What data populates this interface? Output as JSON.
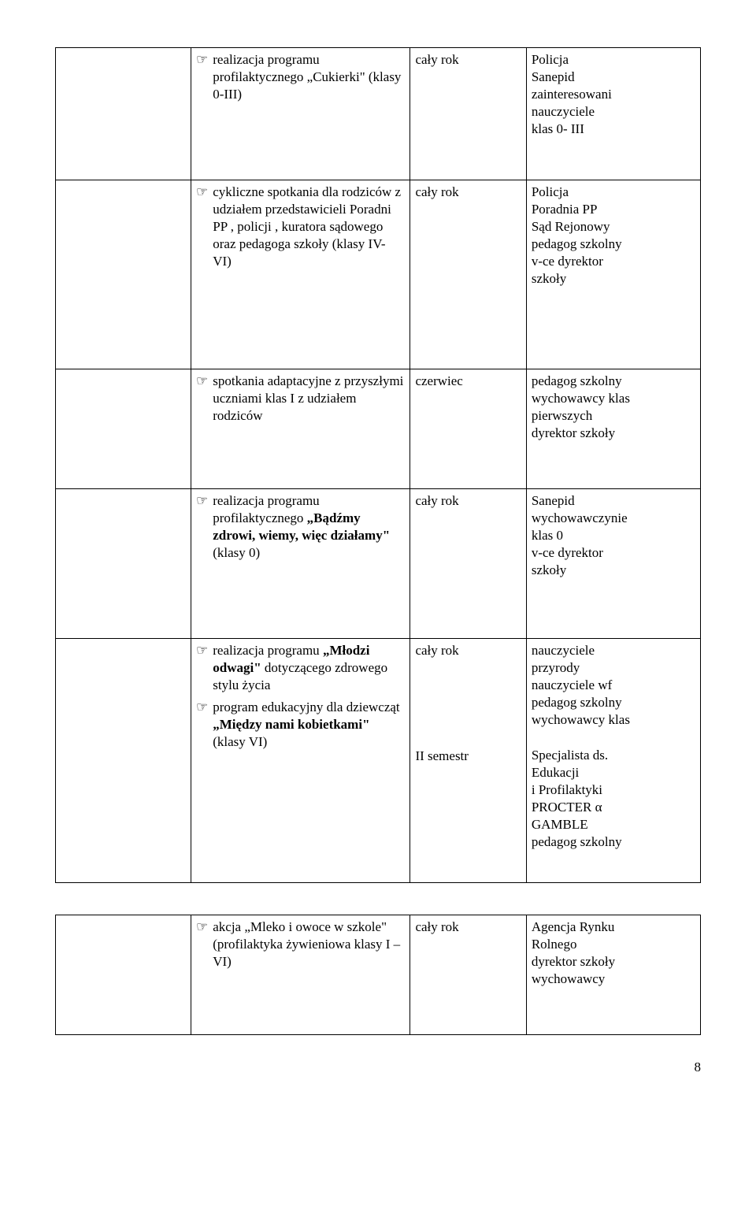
{
  "bullet_glyph": "☞",
  "rows": [
    {
      "col2_items": [
        {
          "text": "realizacja programu profilaktycznego „Cukierki\" (klasy 0-III)"
        }
      ],
      "col3": "cały rok",
      "col4": "Policja\nSanepid\nzainteresowani\nnauczyciele\nklas 0- III"
    },
    {
      "col2_items": [
        {
          "text": "cykliczne spotkania dla rodziców z udziałem przedstawicieli Poradni PP , policji , kuratora sądowego  oraz pedagoga szkoły (klasy IV- VI)"
        }
      ],
      "col3": "cały rok",
      "col4": "Policja\nPoradnia PP\nSąd Rejonowy\npedagog szkolny\nv-ce dyrektor\nszkoły"
    },
    {
      "col2_items": [
        {
          "text": "spotkania adaptacyjne z przyszłymi uczniami klas I z udziałem rodziców"
        }
      ],
      "col3": "czerwiec",
      "col4": "pedagog szkolny\nwychowawcy klas\npierwszych\ndyrektor szkoły"
    },
    {
      "col2_items": [
        {
          "html": "realizacja programu profilaktycznego <b>„Bądźmy zdrowi, wiemy, więc działamy\"</b> (klasy 0)"
        }
      ],
      "col3": "cały rok",
      "col4": "Sanepid\nwychowawczynie\nklas 0\nv-ce dyrektor\nszkoły"
    },
    {
      "col2_items": [
        {
          "html": "realizacja programu <b>„Młodzi odwagi\"</b> dotyczącego zdrowego stylu życia"
        },
        {
          "html": "program edukacyjny dla dziewcząt <b>„Między nami kobietkami\"</b> (klasy VI)"
        }
      ],
      "col3_multi": [
        "cały rok",
        "II semestr"
      ],
      "col4": "nauczyciele\nprzyrody\nnauczyciele wf\npedagog szkolny\nwychowawcy klas\n\nSpecjalista ds.\nEdukacji\ni Profilaktyki\nPROCTER α\nGAMBLE\npedagog szkolny"
    },
    {
      "col2_items": [
        {
          "text": "akcja „Mleko i owoce w szkole\" (profilaktyka żywieniowa klasy I – VI)"
        }
      ],
      "col3": "cały rok",
      "col4": "Agencja Rynku\nRolnego\ndyrektor szkoły\nwychowawcy"
    }
  ],
  "page_number": "8"
}
